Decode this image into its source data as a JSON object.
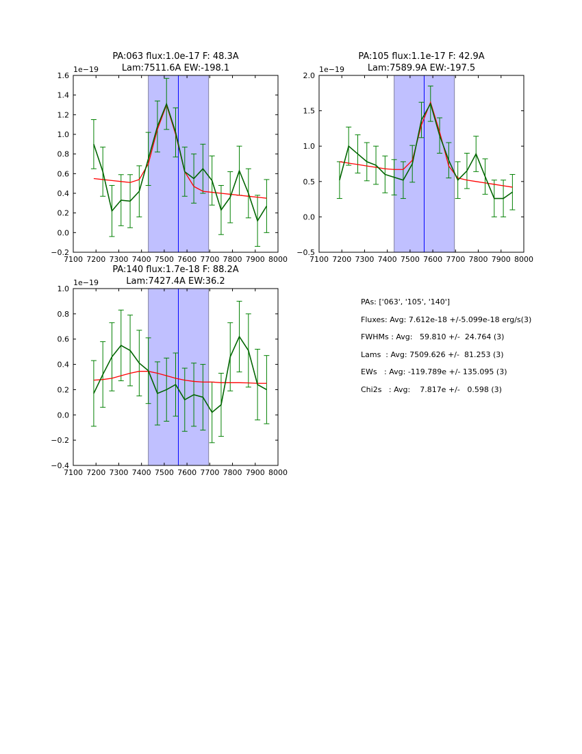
{
  "chart_data": [
    {
      "type": "line",
      "title": [
        "PA:063 flux:1.0e-17 F: 48.3A",
        "Lam:7511.6A EW:-198.1"
      ],
      "offset_label": "1e−19",
      "xlim": [
        7100,
        8000
      ],
      "ylim": [
        -0.2,
        1.6
      ],
      "xticks": [
        7100,
        7200,
        7300,
        7400,
        7500,
        7600,
        7700,
        7800,
        7900,
        8000
      ],
      "yticks": [
        -0.2,
        0.0,
        0.2,
        0.4,
        0.6,
        0.8,
        1.0,
        1.2,
        1.4,
        1.6
      ],
      "band": [
        7430,
        7695
      ],
      "center_line": 7562,
      "x": [
        7190,
        7230,
        7270,
        7310,
        7350,
        7390,
        7430,
        7470,
        7510,
        7550,
        7590,
        7630,
        7670,
        7710,
        7750,
        7790,
        7830,
        7870,
        7910,
        7950
      ],
      "series": [
        {
          "name": "data",
          "color": "#006400",
          "values": [
            0.9,
            0.62,
            0.22,
            0.33,
            0.32,
            0.42,
            0.75,
            1.08,
            1.31,
            1.02,
            0.62,
            0.55,
            0.65,
            0.53,
            0.23,
            0.36,
            0.63,
            0.4,
            0.12,
            0.27
          ],
          "errors": [
            0.25,
            0.25,
            0.26,
            0.26,
            0.27,
            0.26,
            0.27,
            0.26,
            0.26,
            0.25,
            0.25,
            0.25,
            0.25,
            0.25,
            0.25,
            0.26,
            0.25,
            0.25,
            0.26,
            0.27
          ]
        },
        {
          "name": "fit",
          "color": "#ff0000",
          "values": [
            0.55,
            0.54,
            0.53,
            0.52,
            0.51,
            0.54,
            0.7,
            1.05,
            1.3,
            1.0,
            0.62,
            0.47,
            0.42,
            0.41,
            0.4,
            0.39,
            0.38,
            0.37,
            0.36,
            0.35
          ]
        }
      ]
    },
    {
      "type": "line",
      "title": [
        "PA:105 flux:1.1e-17 F: 42.9A",
        "Lam:7589.9A EW:-197.5"
      ],
      "offset_label": "1e−19",
      "xlim": [
        7100,
        8000
      ],
      "ylim": [
        -0.5,
        2.0
      ],
      "xticks": [
        7100,
        7200,
        7300,
        7400,
        7500,
        7600,
        7700,
        7800,
        7900,
        8000
      ],
      "yticks": [
        -0.5,
        0.0,
        0.5,
        1.0,
        1.5,
        2.0
      ],
      "band": [
        7430,
        7695
      ],
      "center_line": 7562,
      "x": [
        7190,
        7230,
        7270,
        7310,
        7350,
        7390,
        7430,
        7470,
        7510,
        7550,
        7590,
        7630,
        7670,
        7710,
        7750,
        7790,
        7830,
        7870,
        7910,
        7950
      ],
      "series": [
        {
          "name": "data",
          "color": "#006400",
          "values": [
            0.52,
            1.0,
            0.89,
            0.78,
            0.73,
            0.6,
            0.56,
            0.52,
            0.75,
            1.37,
            1.6,
            1.15,
            0.8,
            0.52,
            0.65,
            0.89,
            0.57,
            0.26,
            0.26,
            0.35
          ],
          "errors": [
            0.26,
            0.27,
            0.27,
            0.27,
            0.27,
            0.26,
            0.25,
            0.26,
            0.26,
            0.25,
            0.25,
            0.25,
            0.25,
            0.26,
            0.25,
            0.25,
            0.25,
            0.26,
            0.26,
            0.25
          ]
        },
        {
          "name": "fit",
          "color": "#ff0000",
          "values": [
            0.78,
            0.76,
            0.74,
            0.72,
            0.7,
            0.68,
            0.67,
            0.67,
            0.8,
            1.3,
            1.62,
            1.2,
            0.72,
            0.55,
            0.52,
            0.5,
            0.48,
            0.46,
            0.44,
            0.42
          ]
        }
      ]
    },
    {
      "type": "line",
      "title": [
        "PA:140 flux:1.7e-18 F: 88.2A",
        "Lam:7427.4A EW:36.2"
      ],
      "offset_label": "1e−19",
      "xlim": [
        7100,
        8000
      ],
      "ylim": [
        -0.4,
        1.0
      ],
      "xticks": [
        7100,
        7200,
        7300,
        7400,
        7500,
        7600,
        7700,
        7800,
        7900,
        8000
      ],
      "yticks": [
        -0.4,
        -0.2,
        0.0,
        0.2,
        0.4,
        0.6,
        0.8,
        1.0
      ],
      "band": [
        7430,
        7695
      ],
      "center_line": 7562,
      "x": [
        7190,
        7230,
        7270,
        7310,
        7350,
        7390,
        7430,
        7470,
        7510,
        7550,
        7590,
        7630,
        7670,
        7710,
        7750,
        7790,
        7830,
        7870,
        7910,
        7950
      ],
      "series": [
        {
          "name": "data",
          "color": "#006400",
          "values": [
            0.17,
            0.32,
            0.46,
            0.55,
            0.51,
            0.41,
            0.35,
            0.17,
            0.2,
            0.24,
            0.12,
            0.16,
            0.14,
            0.02,
            0.08,
            0.46,
            0.62,
            0.51,
            0.24,
            0.2
          ],
          "errors": [
            0.26,
            0.26,
            0.27,
            0.28,
            0.28,
            0.26,
            0.26,
            0.25,
            0.25,
            0.25,
            0.25,
            0.25,
            0.26,
            0.24,
            0.25,
            0.27,
            0.28,
            0.29,
            0.28,
            0.27
          ]
        },
        {
          "name": "fit",
          "color": "#ff0000",
          "values": [
            0.275,
            0.28,
            0.29,
            0.31,
            0.33,
            0.345,
            0.345,
            0.33,
            0.31,
            0.29,
            0.275,
            0.265,
            0.26,
            0.26,
            0.255,
            0.255,
            0.255,
            0.253,
            0.25,
            0.25
          ]
        }
      ]
    }
  ],
  "stats": [
    "PAs: ['063', '105', '140']",
    "Fluxes: Avg: 7.612e-18 +/-5.099e-18 erg/s(3)",
    "FWHMs : Avg:   59.810 +/-  24.764 (3)",
    "Lams  : Avg: 7509.626 +/-  81.253 (3)",
    "EWs   : Avg: -119.789e +/- 135.095 (3)",
    "Chi2s   : Avg:    7.817e +/-   0.598 (3)"
  ],
  "colors": {
    "band": "#c0c0ff",
    "center": "#0000ff",
    "data": "#006400",
    "errbar": "#008000",
    "fit": "#ff0000"
  }
}
